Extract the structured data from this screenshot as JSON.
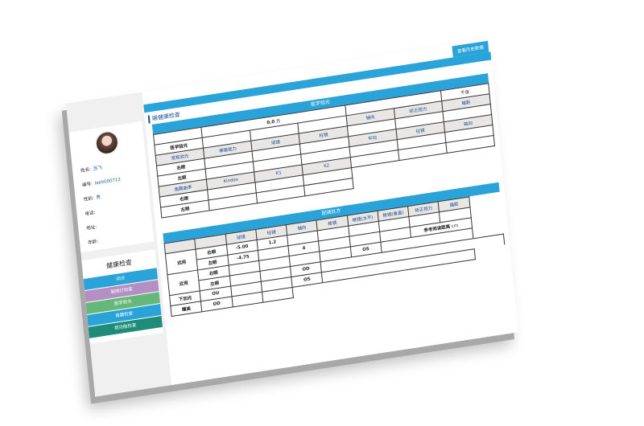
{
  "colors": {
    "accent": "#29a3d8",
    "purple": "#b38fc4",
    "green": "#65b87a",
    "teal": "#1f8c7a"
  },
  "toolbar": {
    "history_button": "查看历史数据"
  },
  "page_title": "眼健康检查",
  "patient": {
    "name_label": "姓名:",
    "name": "吕飞",
    "id_label": "编号:",
    "id": "lakh000712",
    "gender_label": "性别:",
    "gender": "男",
    "phone_label": "电话:",
    "address_label": "地址:",
    "age_label": "年龄:"
  },
  "health": {
    "title": "健康检查",
    "items": [
      "问诊",
      "裂隙灯检查",
      "医学验光",
      "角膜检查",
      "视功能检查"
    ]
  },
  "medical": {
    "header": "医学验光",
    "fee": "0.0",
    "fee_unit": "元",
    "note": "不良",
    "row_label": "医学验光",
    "routine": "常规验光",
    "cols": [
      "裸眼视力",
      "球镜",
      "柱镜",
      "轴向",
      "矫正视力",
      "瞳距"
    ],
    "right": "右眼",
    "left": "左眼",
    "kera": "角膜曲率",
    "kcols": [
      "Kindex",
      "K1",
      "K2",
      "平均",
      "柱镜",
      "轴向"
    ]
  },
  "rx": {
    "header": "配镜处方",
    "cols": [
      "球镜",
      "柱镜",
      "轴向",
      "棱镜",
      "棱镜(水平)",
      "棱镜(垂直)",
      "矫正视力",
      "瞳距"
    ],
    "far": "远用",
    "near": "近用",
    "right": "右眼",
    "left": "左眼",
    "far_right": {
      "sph": "-5.00",
      "cyl": "1.2"
    },
    "far_left": {
      "sph": "-4.75",
      "axis": "4"
    },
    "os": "OS",
    "od": "OD",
    "ou": "OU",
    "add": "下加光",
    "height": "瞳高",
    "read_label": "参考阅读距离",
    "read_unit": "cm"
  }
}
